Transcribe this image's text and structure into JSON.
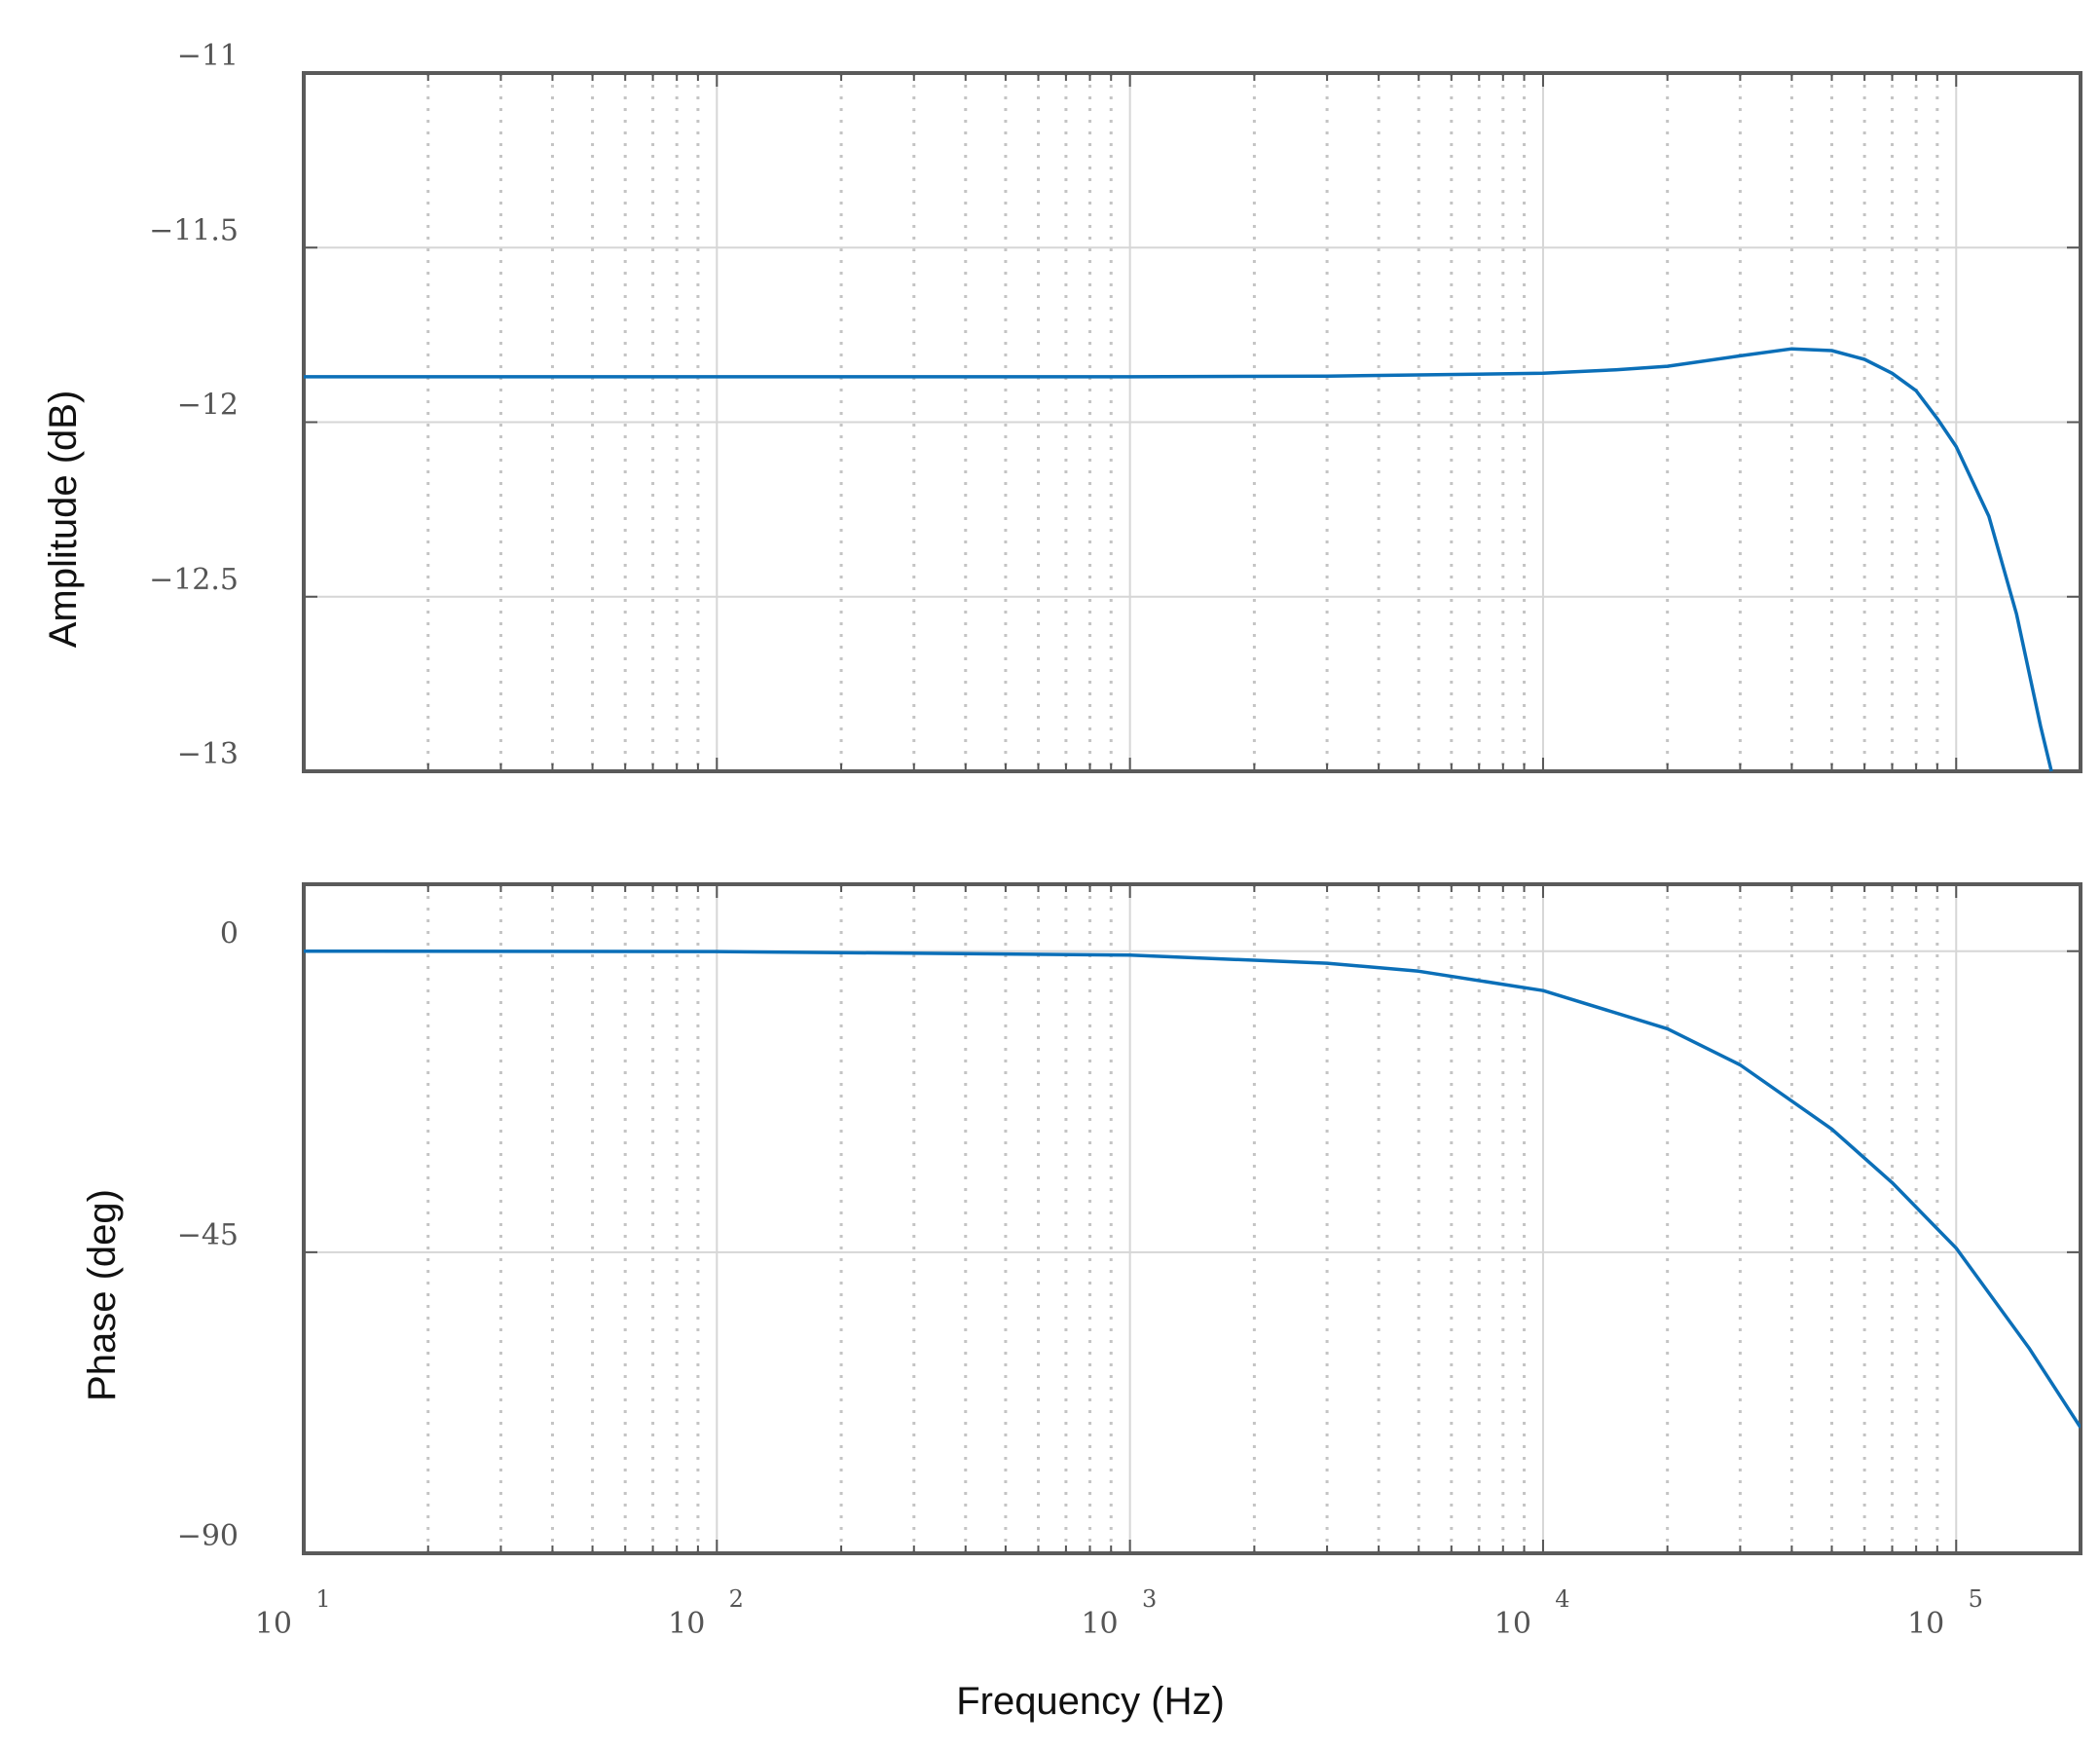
{
  "chart_data": [
    {
      "type": "line",
      "panel": "amplitude",
      "xlabel": "Frequency  (Hz)",
      "ylabel": "Amplitude (dB)",
      "x_scale": "log",
      "xlim": [
        10,
        200000
      ],
      "ylim": [
        -13,
        -11
      ],
      "yticks": [
        -13,
        -12.5,
        -12,
        -11.5,
        -11
      ],
      "ytick_labels": [
        "−13",
        "−12.5",
        "−12",
        "−11.5",
        "−11"
      ],
      "grid": true,
      "series": [
        {
          "color": "#0b6fb8",
          "x": [
            10,
            100,
            1000,
            3000,
            10000,
            15000,
            20000,
            30000,
            40000,
            50000,
            60000,
            70000,
            80000,
            90000,
            100000,
            120000,
            140000,
            160000,
            170000
          ],
          "y": [
            -11.87,
            -11.87,
            -11.87,
            -11.868,
            -11.86,
            -11.85,
            -11.84,
            -11.81,
            -11.79,
            -11.795,
            -11.82,
            -11.86,
            -11.91,
            -11.99,
            -12.07,
            -12.27,
            -12.55,
            -12.87,
            -13.0
          ]
        }
      ]
    },
    {
      "type": "line",
      "panel": "phase",
      "xlabel": "Frequency  (Hz)",
      "ylabel": "Phase (deg)",
      "x_scale": "log",
      "xlim": [
        10,
        200000
      ],
      "ylim": [
        -90,
        10
      ],
      "yticks": [
        -90,
        -45,
        0
      ],
      "ytick_labels": [
        "−90",
        "−45",
        "0"
      ],
      "xticks": [
        10,
        100,
        1000,
        10000,
        100000
      ],
      "xtick_labels": [
        {
          "base": "10",
          "exp": "1"
        },
        {
          "base": "10",
          "exp": "2"
        },
        {
          "base": "10",
          "exp": "3"
        },
        {
          "base": "10",
          "exp": "4"
        },
        {
          "base": "10",
          "exp": "5"
        }
      ],
      "grid": true,
      "series": [
        {
          "color": "#0b6fb8",
          "x": [
            10,
            100,
            1000,
            3000,
            5000,
            10000,
            20000,
            30000,
            50000,
            70000,
            100000,
            150000,
            200000
          ],
          "y": [
            0,
            -0.06,
            -0.6,
            -1.8,
            -3.0,
            -5.9,
            -11.6,
            -17.0,
            -26.6,
            -34.6,
            -44.4,
            -59.3,
            -71.2
          ]
        }
      ]
    }
  ]
}
